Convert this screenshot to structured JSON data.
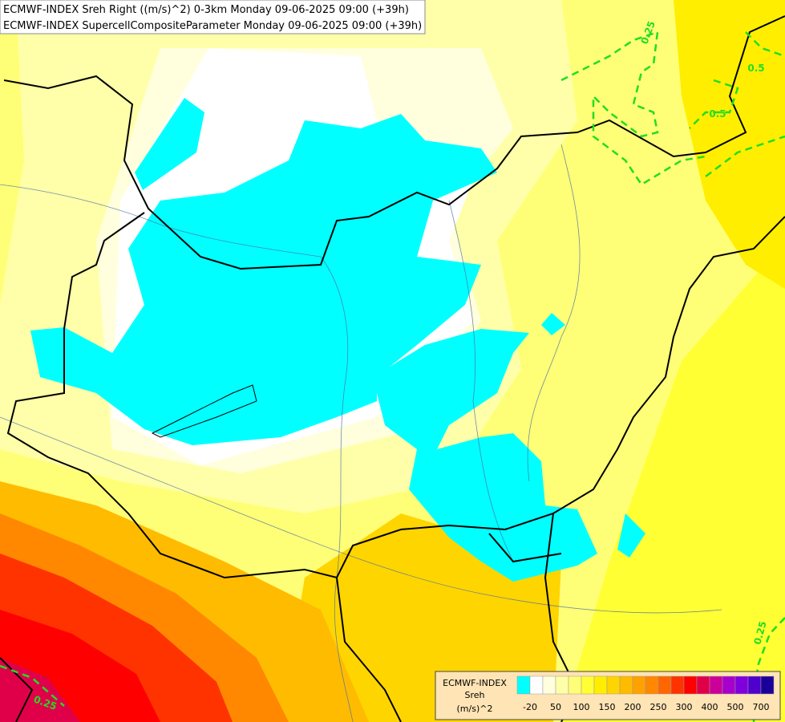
{
  "header": {
    "line1": "ECMWF-INDEX Sreh Right ((m/s)^2) 0-3km Monday 09-06-2025 09:00 (+39h)",
    "line2": "ECMWF-INDEX SupercellCompositeParameter Monday 09-06-2025 09:00 (+39h)"
  },
  "legend": {
    "title": [
      "ECMWF-INDEX",
      "Sreh",
      "(m/s)^2"
    ],
    "ticks": [
      -20,
      50,
      100,
      150,
      200,
      250,
      300,
      400,
      500,
      700
    ],
    "colors": [
      "#00ffff",
      "#ffffff",
      "#ffffdd",
      "#ffffaa",
      "#ffff77",
      "#ffff33",
      "#ffee00",
      "#ffd500",
      "#ffbb00",
      "#ffa200",
      "#ff8800",
      "#ff6600",
      "#ff3300",
      "#ff0000",
      "#e0004a",
      "#cc0099",
      "#a800cc",
      "#8000dd",
      "#5000cc",
      "#1a0099"
    ]
  },
  "contour_labels": [
    "0.25",
    "0.5",
    "0.5",
    "0.25",
    "0.25"
  ]
}
